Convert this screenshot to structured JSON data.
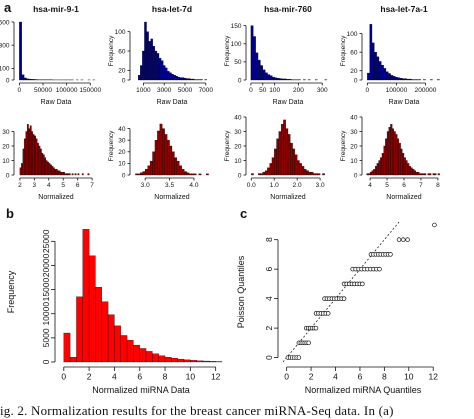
{
  "panel_labels": {
    "a": "a",
    "b": "b",
    "c": "c"
  },
  "caption_text": "ig. 2.  Normalization results for the breast cancer miRNA-Seq data. In (a)",
  "chart_data": [
    {
      "panel": "a",
      "type": "bar",
      "title": "hsa-mir-9-1",
      "xlabel": "Raw Data",
      "ylabel": "Frequency",
      "color": "#00008b",
      "xlim": [
        -5000,
        160000
      ],
      "xticks": [
        0,
        50000,
        100000,
        150000
      ],
      "xtick_labels": [
        "0",
        "50000",
        "100000",
        "150000"
      ],
      "ylim": [
        0,
        500
      ],
      "yticks": [
        0,
        100,
        300,
        500
      ],
      "bin_start": 0,
      "bin_width": 5000,
      "values": [
        520,
        45,
        18,
        10,
        8,
        6,
        5,
        4,
        3,
        3,
        2,
        2,
        2,
        2,
        1,
        1,
        1,
        1,
        1,
        1,
        1,
        1,
        1,
        0,
        1,
        0,
        1,
        0,
        0,
        1,
        0,
        1
      ]
    },
    {
      "panel": "a",
      "type": "bar",
      "title": "hsa-let-7d",
      "xlabel": "Raw Data",
      "ylabel": "Frequency",
      "color": "#00008b",
      "xlim": [
        0,
        7500
      ],
      "xticks": [
        1000,
        3000,
        5000,
        7000
      ],
      "xtick_labels": [
        "1000",
        "3000",
        "5000",
        "7000"
      ],
      "ylim": [
        0,
        120
      ],
      "yticks": [
        0,
        20,
        60,
        100
      ],
      "bin_start": 500,
      "bin_width": 200,
      "values": [
        10,
        30,
        60,
        120,
        100,
        80,
        85,
        70,
        60,
        55,
        45,
        40,
        30,
        25,
        18,
        15,
        12,
        10,
        8,
        6,
        5,
        5,
        4,
        3,
        3,
        2,
        2,
        1,
        1,
        1,
        1,
        0,
        1
      ]
    },
    {
      "panel": "a",
      "type": "bar",
      "title": "hsa-mir-760",
      "xlabel": "Raw Data",
      "ylabel": "Frequency",
      "color": "#00008b",
      "xlim": [
        -8,
        320
      ],
      "xticks": [
        0,
        50,
        100,
        200,
        300
      ],
      "xtick_labels": [
        "0",
        "50",
        "100",
        "200",
        "300"
      ],
      "ylim": [
        0,
        160
      ],
      "yticks": [
        0,
        50,
        100,
        150
      ],
      "bin_start": 0,
      "bin_width": 10,
      "values": [
        150,
        120,
        75,
        55,
        40,
        28,
        20,
        15,
        12,
        8,
        6,
        5,
        4,
        3,
        3,
        2,
        2,
        1,
        1,
        1,
        1,
        0,
        1,
        0,
        1,
        0,
        0,
        1,
        0,
        0,
        0,
        1
      ]
    },
    {
      "panel": "a",
      "type": "bar",
      "title": "hsa-let-7a-1",
      "xlabel": "Raw Data",
      "ylabel": "Frequency",
      "color": "#00008b",
      "xlim": [
        -8000,
        260000
      ],
      "xticks": [
        0,
        100000,
        200000
      ],
      "xtick_labels": [
        "0",
        "100000",
        "200000"
      ],
      "ylim": [
        0,
        125
      ],
      "yticks": [
        0,
        20,
        60,
        100
      ],
      "bin_start": 0,
      "bin_width": 8000,
      "values": [
        15,
        120,
        80,
        60,
        50,
        40,
        32,
        25,
        18,
        14,
        10,
        8,
        6,
        5,
        4,
        3,
        3,
        2,
        2,
        1,
        1,
        1,
        1,
        0,
        1,
        0,
        0,
        1,
        0,
        0,
        1
      ]
    },
    {
      "panel": "a",
      "type": "bar",
      "xlabel": "Normalized",
      "ylabel": "Frequency",
      "color": "#8b0000",
      "xlim": [
        1.8,
        7.2
      ],
      "xticks": [
        2,
        3,
        4,
        5,
        6,
        7
      ],
      "xtick_labels": [
        "2",
        "3",
        "4",
        "5",
        "6",
        "7"
      ],
      "ylim": [
        0,
        40
      ],
      "yticks": [
        0,
        10,
        20,
        30
      ],
      "bin_start": 2.0,
      "bin_width": 0.1,
      "values": [
        5,
        8,
        18,
        25,
        30,
        35,
        32,
        34,
        30,
        28,
        27,
        25,
        22,
        20,
        18,
        15,
        14,
        12,
        10,
        9,
        8,
        7,
        6,
        5,
        4,
        4,
        3,
        3,
        2,
        2,
        2,
        1,
        1,
        1,
        1,
        0,
        1,
        0,
        1,
        0,
        1,
        0,
        0,
        1,
        0,
        0,
        0,
        1
      ]
    },
    {
      "panel": "a",
      "type": "bar",
      "xlabel": "Normalized",
      "ylabel": "Frequency",
      "color": "#8b0000",
      "xlim": [
        2.75,
        4.35
      ],
      "xticks": [
        3.0,
        3.5,
        4.0
      ],
      "xtick_labels": [
        "3.0",
        "3.5",
        "4.0"
      ],
      "ylim": [
        0,
        50
      ],
      "yticks": [
        0,
        10,
        20,
        30,
        40
      ],
      "bin_start": 2.8,
      "bin_width": 0.05,
      "values": [
        1,
        1,
        2,
        3,
        5,
        8,
        12,
        20,
        30,
        38,
        44,
        40,
        35,
        30,
        25,
        20,
        15,
        12,
        8,
        5,
        3,
        2,
        1,
        1,
        1,
        0,
        1,
        0,
        0,
        1
      ]
    },
    {
      "panel": "a",
      "type": "bar",
      "xlabel": "Normalized",
      "ylabel": "Frequency",
      "color": "#8b0000",
      "xlim": [
        -0.1,
        3.3
      ],
      "xticks": [
        0.0,
        1.0,
        2.0,
        3.0
      ],
      "xtick_labels": [
        "0.0",
        "1.0",
        "2.0",
        "3.0"
      ],
      "ylim": [
        0,
        40
      ],
      "yticks": [
        0,
        10,
        20,
        30,
        40
      ],
      "bin_start": 0.0,
      "bin_width": 0.1,
      "values": [
        1,
        0,
        0,
        1,
        1,
        2,
        3,
        5,
        8,
        12,
        18,
        25,
        30,
        35,
        38,
        32,
        28,
        22,
        18,
        14,
        10,
        8,
        6,
        4,
        3,
        2,
        2,
        1,
        1,
        1,
        0,
        1
      ]
    },
    {
      "panel": "a",
      "type": "bar",
      "xlabel": "Normalized",
      "ylabel": "Frequency",
      "color": "#8b0000",
      "xlim": [
        3.7,
        8.3
      ],
      "xticks": [
        4,
        5,
        6,
        7,
        8
      ],
      "xtick_labels": [
        "4",
        "5",
        "6",
        "7",
        "8"
      ],
      "ylim": [
        0,
        40
      ],
      "yticks": [
        0,
        10,
        20,
        30,
        40
      ],
      "bin_start": 3.8,
      "bin_width": 0.1,
      "values": [
        1,
        1,
        2,
        3,
        4,
        6,
        8,
        10,
        12,
        15,
        20,
        25,
        30,
        33,
        35,
        32,
        30,
        28,
        25,
        22,
        18,
        15,
        12,
        10,
        8,
        6,
        5,
        4,
        3,
        2,
        2,
        1,
        1,
        1,
        1,
        0,
        1,
        1,
        0,
        1,
        1,
        0,
        1
      ]
    },
    {
      "panel": "b",
      "type": "bar",
      "xlabel": "Normalized miRNA Data",
      "ylabel": "Frequency",
      "color": "#ff0000",
      "xlim": [
        -0.3,
        12.5
      ],
      "xticks": [
        0,
        2,
        4,
        6,
        8,
        10,
        12
      ],
      "xtick_labels": [
        "0",
        "2",
        "4",
        "6",
        "8",
        "10",
        "12"
      ],
      "ylim": [
        0,
        29000
      ],
      "yticks": [
        0,
        5000,
        10000,
        15000,
        20000,
        25000
      ],
      "ytick_labels": [
        "0",
        "5000",
        "10000",
        "15000",
        "20000",
        "25000"
      ],
      "bin_start": 0,
      "bin_width": 0.5,
      "values": [
        6000,
        1000,
        13500,
        27500,
        22000,
        15500,
        12500,
        9800,
        7500,
        5500,
        4500,
        3500,
        2800,
        2200,
        1700,
        1300,
        1000,
        800,
        600,
        450,
        350,
        250,
        200,
        150,
        100
      ]
    },
    {
      "panel": "c",
      "type": "scatter",
      "xlabel": "Normalized miRNA Quantiles",
      "ylabel": "Poisson Quantiles",
      "xlim": [
        -0.3,
        12.8
      ],
      "xticks": [
        0,
        2,
        4,
        6,
        8,
        10,
        12
      ],
      "xtick_labels": [
        "0",
        "2",
        "4",
        "6",
        "8",
        "10",
        "12"
      ],
      "ylim": [
        -0.3,
        9.2
      ],
      "yticks": [
        0,
        2,
        4,
        6,
        8
      ],
      "ytick_labels": [
        "0",
        "2",
        "4",
        "6",
        "8"
      ],
      "reference_line": {
        "intercept": 0,
        "slope": 1
      },
      "steps": [
        {
          "y": 0,
          "x_start": 0.1,
          "x_end": 1.0,
          "count": 6
        },
        {
          "y": 1,
          "x_start": 1.0,
          "x_end": 1.8,
          "count": 6
        },
        {
          "y": 2,
          "x_start": 1.6,
          "x_end": 2.4,
          "count": 6
        },
        {
          "y": 3,
          "x_start": 2.4,
          "x_end": 3.4,
          "count": 6
        },
        {
          "y": 4,
          "x_start": 3.1,
          "x_end": 4.7,
          "count": 9
        },
        {
          "y": 5,
          "x_start": 4.7,
          "x_end": 6.2,
          "count": 8
        },
        {
          "y": 6,
          "x_start": 5.4,
          "x_end": 7.6,
          "count": 10
        },
        {
          "y": 7,
          "x_start": 6.9,
          "x_end": 8.5,
          "count": 9
        },
        {
          "y": 8,
          "x_start": 9.2,
          "x_end": 9.9,
          "count": 3
        }
      ],
      "points": [
        {
          "x": 12.1,
          "y": 9
        }
      ]
    }
  ]
}
